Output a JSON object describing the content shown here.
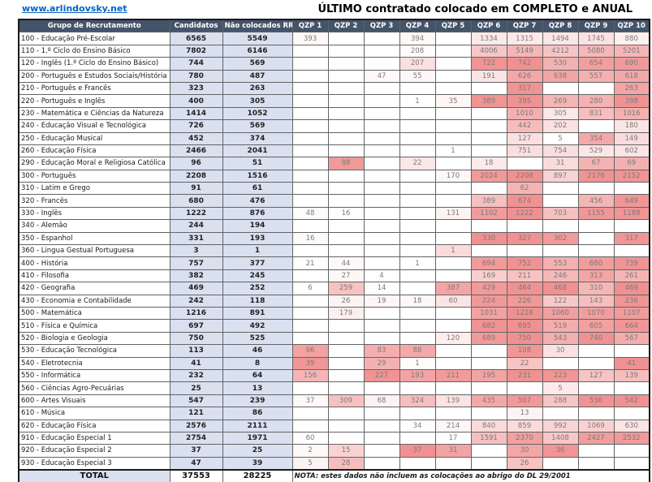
{
  "page": {
    "link": "www.arlindovsky.net",
    "title": "ÚLTIMO contratado colocado em COMPLETO e ANUAL"
  },
  "colors": {
    "header_bg": "#44546A",
    "header_text": "#FFFFFF",
    "count_bg": "#D9E0F0",
    "heat_max": "#F09191",
    "link": "#0563C1"
  },
  "table": {
    "columns": {
      "group": "Grupo de Recrutamento",
      "candidatos": "Candidatos",
      "nao_colocados": "Não colocados RR1",
      "qzp": [
        "QZP 1",
        "QZP 2",
        "QZP 3",
        "QZP 4",
        "QZP 5",
        "QZP 6",
        "QZP 7",
        "QZP 8",
        "QZP 9",
        "QZP 10"
      ]
    },
    "rows": [
      {
        "label": "100 - Educação Pré-Escolar",
        "candidatos": 6565,
        "nao_colocados": 5549,
        "qzp": [
          393,
          null,
          null,
          394,
          null,
          1334,
          1315,
          1494,
          1745,
          880
        ]
      },
      {
        "label": "110 - 1.º Ciclo do Ensino Básico",
        "candidatos": 7802,
        "nao_colocados": 6146,
        "qzp": [
          null,
          null,
          null,
          208,
          null,
          4006,
          5149,
          4212,
          5080,
          5201
        ]
      },
      {
        "label": "120 - Inglês (1.º Ciclo do Ensino Básico)",
        "candidatos": 744,
        "nao_colocados": 569,
        "qzp": [
          null,
          null,
          null,
          207,
          null,
          722,
          742,
          530,
          654,
          690
        ]
      },
      {
        "label": "200 - Português e Estudos Sociais/História",
        "candidatos": 780,
        "nao_colocados": 487,
        "qzp": [
          null,
          null,
          47,
          55,
          null,
          191,
          626,
          638,
          557,
          618
        ]
      },
      {
        "label": "210 - Português e Francês",
        "candidatos": 323,
        "nao_colocados": 263,
        "qzp": [
          null,
          null,
          null,
          null,
          null,
          null,
          317,
          null,
          null,
          263
        ]
      },
      {
        "label": "220 - Português e Inglês",
        "candidatos": 400,
        "nao_colocados": 305,
        "qzp": [
          null,
          null,
          null,
          1,
          35,
          389,
          395,
          269,
          280,
          398
        ]
      },
      {
        "label": "230 - Matemática e Ciências da Natureza",
        "candidatos": 1414,
        "nao_colocados": 1052,
        "qzp": [
          null,
          null,
          null,
          null,
          null,
          null,
          1010,
          305,
          831,
          1016
        ]
      },
      {
        "label": "240 - Educação Visual e Tecnológica",
        "candidatos": 726,
        "nao_colocados": 569,
        "qzp": [
          null,
          null,
          null,
          null,
          null,
          null,
          442,
          202,
          null,
          180
        ]
      },
      {
        "label": "250 - Educação Musical",
        "candidatos": 452,
        "nao_colocados": 374,
        "qzp": [
          null,
          null,
          null,
          null,
          null,
          null,
          127,
          5,
          354,
          149
        ]
      },
      {
        "label": "260 - Educação Física",
        "candidatos": 2466,
        "nao_colocados": 2041,
        "qzp": [
          null,
          null,
          null,
          null,
          1,
          null,
          751,
          754,
          529,
          602
        ]
      },
      {
        "label": "290 - Educação Moral e Religiosa Católica",
        "candidatos": 96,
        "nao_colocados": 51,
        "qzp": [
          null,
          88,
          null,
          22,
          null,
          18,
          null,
          31,
          67,
          69
        ]
      },
      {
        "label": "300 - Português",
        "candidatos": 2208,
        "nao_colocados": 1516,
        "qzp": [
          null,
          null,
          null,
          null,
          170,
          2024,
          2208,
          897,
          2176,
          2152
        ]
      },
      {
        "label": "310 - Latim e Grego",
        "candidatos": 91,
        "nao_colocados": 61,
        "qzp": [
          null,
          null,
          null,
          null,
          null,
          null,
          62,
          null,
          null,
          null
        ]
      },
      {
        "label": "320 - Francês",
        "candidatos": 680,
        "nao_colocados": 476,
        "qzp": [
          null,
          null,
          null,
          null,
          null,
          389,
          674,
          null,
          456,
          649
        ]
      },
      {
        "label": "330 - Inglês",
        "candidatos": 1222,
        "nao_colocados": 876,
        "qzp": [
          48,
          16,
          null,
          null,
          131,
          1102,
          1222,
          703,
          1155,
          1188
        ]
      },
      {
        "label": "340 - Alemão",
        "candidatos": 244,
        "nao_colocados": 194,
        "qzp": [
          null,
          null,
          null,
          null,
          null,
          null,
          null,
          null,
          null,
          null
        ]
      },
      {
        "label": "350 - Espanhol",
        "candidatos": 331,
        "nao_colocados": 193,
        "qzp": [
          16,
          null,
          null,
          null,
          null,
          330,
          327,
          302,
          null,
          317
        ]
      },
      {
        "label": "360 - Lingua Gestual Portuguesa",
        "candidatos": 3,
        "nao_colocados": 1,
        "qzp": [
          null,
          null,
          null,
          null,
          1,
          null,
          null,
          null,
          null,
          null
        ]
      },
      {
        "label": "400 - História",
        "candidatos": 757,
        "nao_colocados": 377,
        "qzp": [
          21,
          44,
          null,
          1,
          null,
          694,
          752,
          553,
          680,
          739
        ]
      },
      {
        "label": "410 - Filosofia",
        "candidatos": 382,
        "nao_colocados": 245,
        "qzp": [
          null,
          27,
          4,
          null,
          null,
          169,
          211,
          246,
          313,
          261
        ]
      },
      {
        "label": "420 - Geografia",
        "candidatos": 469,
        "nao_colocados": 252,
        "qzp": [
          6,
          259,
          14,
          null,
          387,
          429,
          464,
          468,
          310,
          469
        ]
      },
      {
        "label": "430 - Economia e Contabilidade",
        "candidatos": 242,
        "nao_colocados": 118,
        "qzp": [
          null,
          26,
          19,
          18,
          60,
          224,
          226,
          122,
          143,
          236
        ]
      },
      {
        "label": "500 - Matemática",
        "candidatos": 1216,
        "nao_colocados": 891,
        "qzp": [
          null,
          179,
          null,
          null,
          null,
          1031,
          1216,
          1060,
          1070,
          1107
        ]
      },
      {
        "label": "510 - Física e Química",
        "candidatos": 697,
        "nao_colocados": 492,
        "qzp": [
          null,
          null,
          null,
          null,
          null,
          682,
          695,
          519,
          605,
          664
        ]
      },
      {
        "label": "520 - Biologia e Geologia",
        "candidatos": 750,
        "nao_colocados": 525,
        "qzp": [
          null,
          null,
          null,
          null,
          120,
          689,
          750,
          543,
          740,
          567
        ]
      },
      {
        "label": "530 - Educação Tecnológica",
        "candidatos": 113,
        "nao_colocados": 46,
        "qzp": [
          96,
          null,
          83,
          88,
          null,
          null,
          108,
          30,
          null,
          null
        ]
      },
      {
        "label": "540 - Eletrotecnia",
        "candidatos": 41,
        "nao_colocados": 8,
        "qzp": [
          39,
          null,
          29,
          1,
          null,
          null,
          22,
          null,
          null,
          41
        ]
      },
      {
        "label": "550 - Informática",
        "candidatos": 232,
        "nao_colocados": 64,
        "qzp": [
          156,
          null,
          227,
          193,
          211,
          195,
          231,
          223,
          127,
          139
        ]
      },
      {
        "label": "560 - Ciências Agro-Pecuárias",
        "candidatos": 25,
        "nao_colocados": 13,
        "qzp": [
          null,
          null,
          null,
          null,
          null,
          null,
          null,
          5,
          null,
          null
        ]
      },
      {
        "label": "600 - Artes Visuais",
        "candidatos": 547,
        "nao_colocados": 239,
        "qzp": [
          37,
          309,
          68,
          324,
          139,
          435,
          507,
          288,
          536,
          542
        ]
      },
      {
        "label": "610 - Música",
        "candidatos": 121,
        "nao_colocados": 86,
        "qzp": [
          null,
          null,
          null,
          null,
          null,
          null,
          13,
          null,
          null,
          null
        ]
      },
      {
        "label": "620 - Educação Física",
        "candidatos": 2576,
        "nao_colocados": 2111,
        "qzp": [
          null,
          null,
          null,
          34,
          214,
          840,
          859,
          992,
          1069,
          630
        ]
      },
      {
        "label": "910 - Educação Especial 1",
        "candidatos": 2754,
        "nao_colocados": 1971,
        "qzp": [
          60,
          null,
          null,
          null,
          17,
          1591,
          2370,
          1408,
          2427,
          2532
        ]
      },
      {
        "label": "920 - Educação Especial 2",
        "candidatos": 37,
        "nao_colocados": 25,
        "qzp": [
          2,
          15,
          null,
          37,
          31,
          null,
          30,
          36,
          null,
          null
        ]
      },
      {
        "label": "930 - Educação Especial 3",
        "candidatos": 47,
        "nao_colocados": 39,
        "qzp": [
          5,
          28,
          null,
          null,
          null,
          null,
          26,
          null,
          null,
          null
        ]
      }
    ],
    "total": {
      "label": "TOTAL",
      "candidatos": 37553,
      "nao_colocados": 28225
    },
    "nota": "NOTA: estes dados não incluem as colocações ao abrigo do DL 29/2001"
  }
}
